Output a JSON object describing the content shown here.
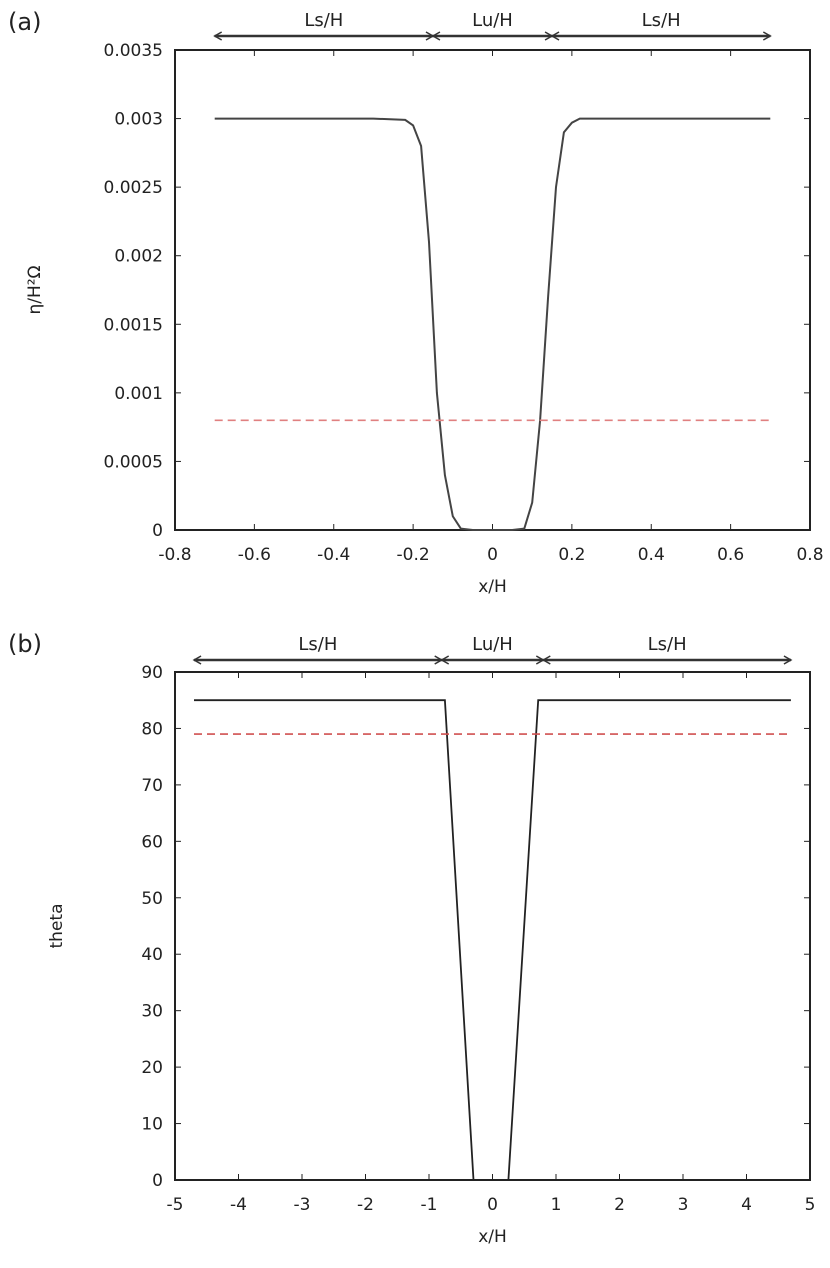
{
  "chart_data": [
    {
      "type": "line",
      "panel_label": "(a)",
      "xlabel": "x/H",
      "ylabel": "η/H²Ω",
      "xlim": [
        -0.8,
        0.8
      ],
      "ylim": [
        0,
        0.0035
      ],
      "xticks": [
        "-0.8",
        "-0.6",
        "-0.4",
        "-0.2",
        "0",
        "0.2",
        "0.4",
        "0.6",
        "0.8"
      ],
      "yticks": [
        "0",
        "0.0005",
        "0.001",
        "0.0015",
        "0.002",
        "0.0025",
        "0.003",
        "0.0035"
      ],
      "grid": false,
      "series": [
        {
          "style": "solid",
          "color": "#444444",
          "x": [
            -0.7,
            -0.3,
            -0.22,
            -0.2,
            -0.18,
            -0.16,
            -0.14,
            -0.12,
            -0.1,
            -0.08,
            -0.05,
            0,
            0.05,
            0.08,
            0.1,
            0.12,
            0.14,
            0.16,
            0.18,
            0.2,
            0.22,
            0.3,
            0.7
          ],
          "y": [
            0.003,
            0.003,
            0.00299,
            0.00295,
            0.0028,
            0.0021,
            0.001,
            0.0004,
            0.0001,
            1e-05,
            0,
            0,
            0,
            1e-05,
            0.0002,
            0.0008,
            0.0017,
            0.0025,
            0.0029,
            0.00297,
            0.003,
            0.003,
            0.003
          ]
        },
        {
          "style": "dashed",
          "color": "#e08080",
          "x": [
            -0.7,
            0.7
          ],
          "y": [
            0.0008,
            0.0008
          ]
        }
      ],
      "annotations": [
        {
          "label": "Ls/H",
          "from": -0.7,
          "to": -0.15
        },
        {
          "label": "Lu/H",
          "from": -0.15,
          "to": 0.15
        },
        {
          "label": "Ls/H",
          "from": 0.15,
          "to": 0.7
        }
      ]
    },
    {
      "type": "line",
      "panel_label": "(b)",
      "xlabel": "x/H",
      "ylabel": "theta",
      "xlim": [
        -5,
        5
      ],
      "ylim": [
        0,
        90
      ],
      "xticks": [
        "-5",
        "-4",
        "-3",
        "-2",
        "-1",
        "0",
        "1",
        "2",
        "3",
        "4",
        "5"
      ],
      "yticks": [
        "0",
        "10",
        "20",
        "30",
        "40",
        "50",
        "60",
        "70",
        "80",
        "90"
      ],
      "grid": false,
      "series": [
        {
          "style": "solid",
          "color": "#222222",
          "x": [
            -4.7,
            -0.75,
            -0.3
          ],
          "y": [
            85,
            85,
            0
          ]
        },
        {
          "style": "solid",
          "color": "#222222",
          "x": [
            0.25,
            0.72,
            4.7
          ],
          "y": [
            0,
            85,
            85
          ]
        },
        {
          "style": "dashed",
          "color": "#d05050",
          "x": [
            -4.7,
            4.7
          ],
          "y": [
            79,
            79
          ]
        }
      ],
      "annotations": [
        {
          "label": "Ls/H",
          "from": -4.7,
          "to": -0.8
        },
        {
          "label": "Lu/H",
          "from": -0.8,
          "to": 0.8
        },
        {
          "label": "Ls/H",
          "from": 0.8,
          "to": 4.7
        }
      ]
    }
  ]
}
